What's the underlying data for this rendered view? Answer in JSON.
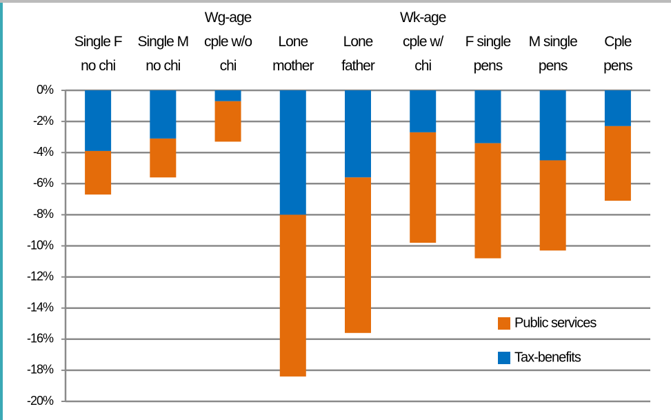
{
  "chart_data": {
    "type": "bar",
    "stacked": true,
    "categories": [
      "Single F\nno chi",
      "Single M\nno chi",
      "Wg-age\ncple w/o\nchi",
      "Lone\nmother",
      "Lone\nfather",
      "Wk-age\ncple w/\nchi",
      "F single\npens",
      "M single\npens",
      "Cple\npens"
    ],
    "series": [
      {
        "name": "Tax-benefits",
        "color": "#0070c0",
        "values": [
          -3.9,
          -3.1,
          -0.7,
          -8.0,
          -5.6,
          -2.7,
          -3.4,
          -4.5,
          -2.3
        ]
      },
      {
        "name": "Public services",
        "color": "#e46c0a",
        "values": [
          -2.8,
          -2.5,
          -2.6,
          -10.4,
          -10.0,
          -7.1,
          -7.4,
          -5.8,
          -4.8
        ]
      }
    ],
    "ylim": [
      -20,
      0
    ],
    "yticks": [
      {
        "value": 0,
        "label": "0%"
      },
      {
        "value": -2,
        "label": "-2%"
      },
      {
        "value": -4,
        "label": "-4%"
      },
      {
        "value": -6,
        "label": "-6%"
      },
      {
        "value": -8,
        "label": "-8%"
      },
      {
        "value": -10,
        "label": "-10%"
      },
      {
        "value": -12,
        "label": "-12%"
      },
      {
        "value": -14,
        "label": "-14%"
      },
      {
        "value": -16,
        "label": "-16%"
      },
      {
        "value": -18,
        "label": "-18%"
      },
      {
        "value": -20,
        "label": "-20%"
      }
    ],
    "grid": true,
    "legend": "lower right"
  }
}
